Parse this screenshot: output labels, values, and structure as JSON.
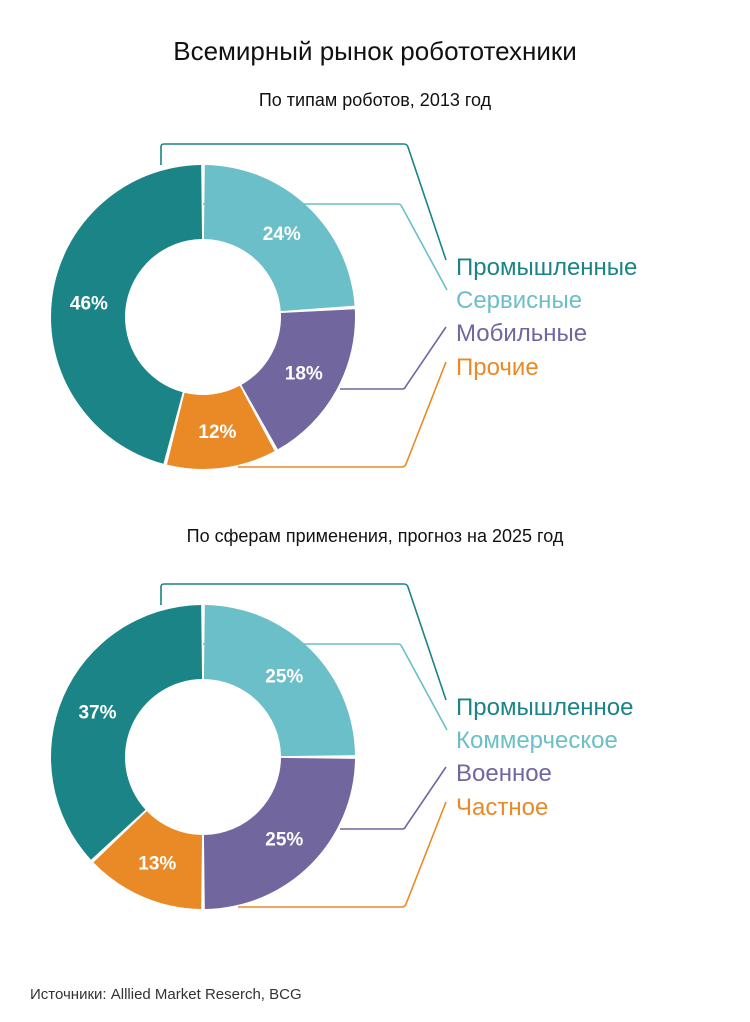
{
  "title": "Всемирный рынок робототехники",
  "source": "Источники: Alllied Market Reserch, BCG",
  "colors": {
    "teal": "#1b8486",
    "light_teal": "#6bbfc8",
    "purple": "#72669e",
    "orange": "#e98a27"
  },
  "chart_data": [
    {
      "type": "pie",
      "subtitle": "По типам роботов, 2013 год",
      "categories": [
        "Промышленные",
        "Сервисные",
        "Мобильные",
        "Прочие"
      ],
      "values": [
        46,
        24,
        18,
        12
      ],
      "labels": [
        "46%",
        "24%",
        "18%",
        "12%"
      ],
      "colors": [
        "#1b8486",
        "#6bbfc8",
        "#72669e",
        "#e98a27"
      ]
    },
    {
      "type": "pie",
      "subtitle": "По сферам применения, прогноз на 2025 год",
      "categories": [
        "Промышленное",
        "Коммерческое",
        "Военное",
        "Частное"
      ],
      "values": [
        37,
        25,
        25,
        13
      ],
      "labels": [
        "37%",
        "25%",
        "25%",
        "13%"
      ],
      "colors": [
        "#1b8486",
        "#6bbfc8",
        "#72669e",
        "#e98a27"
      ]
    }
  ]
}
